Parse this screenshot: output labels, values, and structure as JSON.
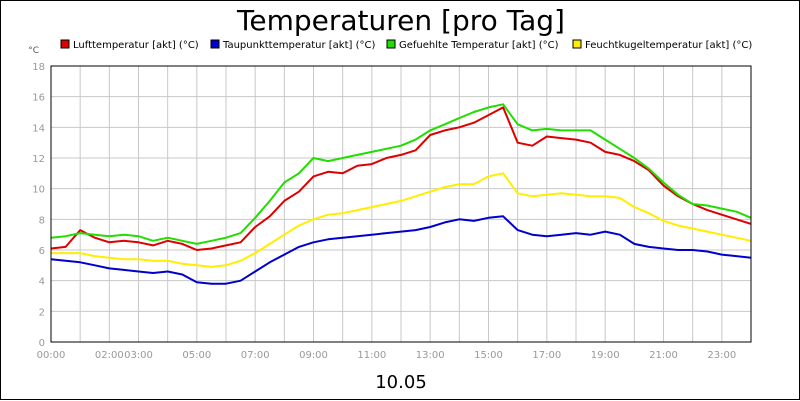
{
  "chart_data": {
    "type": "line",
    "title": "Temperaturen [pro Tag]",
    "yunit": "°C",
    "xlabel": "10.05",
    "ylim": [
      0,
      18
    ],
    "yticks": [
      0,
      2,
      4,
      6,
      8,
      10,
      12,
      14,
      16,
      18
    ],
    "xlim": [
      0,
      24
    ],
    "xticks": [
      {
        "h": 0,
        "label": "00:00"
      },
      {
        "h": 2,
        "label": "02:00"
      },
      {
        "h": 3,
        "label": "03:00"
      },
      {
        "h": 5,
        "label": "05:00"
      },
      {
        "h": 7,
        "label": "07:00"
      },
      {
        "h": 9,
        "label": "09:00"
      },
      {
        "h": 11,
        "label": "11:00"
      },
      {
        "h": 13,
        "label": "13:00"
      },
      {
        "h": 15,
        "label": "15:00"
      },
      {
        "h": 17,
        "label": "17:00"
      },
      {
        "h": 19,
        "label": "19:00"
      },
      {
        "h": 21,
        "label": "21:00"
      },
      {
        "h": 23,
        "label": "23:00"
      }
    ],
    "vgrid_hours": [
      0,
      1,
      2,
      3,
      4,
      5,
      6,
      7,
      8,
      9,
      10,
      11,
      12,
      13,
      14,
      15,
      16,
      17,
      18,
      19,
      20,
      21,
      22,
      23,
      24
    ],
    "grid": true,
    "legend_position": "top",
    "x_hours": [
      0,
      0.5,
      1,
      1.5,
      2,
      2.5,
      3,
      3.5,
      4,
      4.5,
      5,
      5.5,
      6,
      6.5,
      7,
      7.5,
      8,
      8.5,
      9,
      9.5,
      10,
      10.5,
      11,
      11.5,
      12,
      12.5,
      13,
      13.5,
      14,
      14.5,
      15,
      15.5,
      16,
      16.5,
      17,
      17.5,
      18,
      18.5,
      19,
      19.5,
      20,
      20.5,
      21,
      21.5,
      22,
      22.5,
      23,
      23.5,
      24
    ],
    "series": [
      {
        "name": "Lufttemperatur [akt] (°C)",
        "color": "#dd0000",
        "values": [
          6.1,
          6.2,
          7.3,
          6.8,
          6.5,
          6.6,
          6.5,
          6.3,
          6.6,
          6.4,
          6.0,
          6.1,
          6.3,
          6.5,
          7.5,
          8.2,
          9.2,
          9.8,
          10.8,
          11.1,
          11.0,
          11.5,
          11.6,
          12.0,
          12.2,
          12.5,
          13.5,
          13.8,
          14.0,
          14.3,
          14.8,
          15.3,
          13.0,
          12.8,
          13.4,
          13.3,
          13.2,
          13.0,
          12.4,
          12.2,
          11.8,
          11.2,
          10.2,
          9.5,
          9.0,
          8.6,
          8.3,
          8.0,
          7.7
        ]
      },
      {
        "name": "Taupunkttemperatur [akt] (°C)",
        "color": "#0000cc",
        "values": [
          5.4,
          5.3,
          5.2,
          5.0,
          4.8,
          4.7,
          4.6,
          4.5,
          4.6,
          4.4,
          3.9,
          3.8,
          3.8,
          4.0,
          4.6,
          5.2,
          5.7,
          6.2,
          6.5,
          6.7,
          6.8,
          6.9,
          7.0,
          7.1,
          7.2,
          7.3,
          7.5,
          7.8,
          8.0,
          7.9,
          8.1,
          8.2,
          7.3,
          7.0,
          6.9,
          7.0,
          7.1,
          7.0,
          7.2,
          7.0,
          6.4,
          6.2,
          6.1,
          6.0,
          6.0,
          5.9,
          5.7,
          5.6,
          5.5
        ]
      },
      {
        "name": "Gefuehlte Temperatur [akt] (°C)",
        "color": "#22dd00",
        "values": [
          6.8,
          6.9,
          7.1,
          7.0,
          6.9,
          7.0,
          6.9,
          6.6,
          6.8,
          6.6,
          6.4,
          6.6,
          6.8,
          7.1,
          8.1,
          9.2,
          10.4,
          11.0,
          12.0,
          11.8,
          12.0,
          12.2,
          12.4,
          12.6,
          12.8,
          13.2,
          13.8,
          14.2,
          14.6,
          15.0,
          15.3,
          15.5,
          14.2,
          13.8,
          13.9,
          13.8,
          13.8,
          13.8,
          13.2,
          12.6,
          12.0,
          11.3,
          10.4,
          9.6,
          9.0,
          8.9,
          8.7,
          8.5,
          8.1
        ]
      },
      {
        "name": "Feuchtkugeltemperatur [akt] (°C)",
        "color": "#ffee00",
        "values": [
          5.8,
          5.8,
          5.8,
          5.6,
          5.5,
          5.4,
          5.4,
          5.3,
          5.3,
          5.1,
          5.0,
          4.9,
          5.0,
          5.3,
          5.8,
          6.4,
          7.0,
          7.6,
          8.0,
          8.3,
          8.4,
          8.6,
          8.8,
          9.0,
          9.2,
          9.5,
          9.8,
          10.1,
          10.3,
          10.3,
          10.8,
          11.0,
          9.7,
          9.5,
          9.6,
          9.7,
          9.6,
          9.5,
          9.5,
          9.4,
          8.8,
          8.4,
          7.9,
          7.6,
          7.4,
          7.2,
          7.0,
          6.8,
          6.6
        ]
      }
    ]
  }
}
